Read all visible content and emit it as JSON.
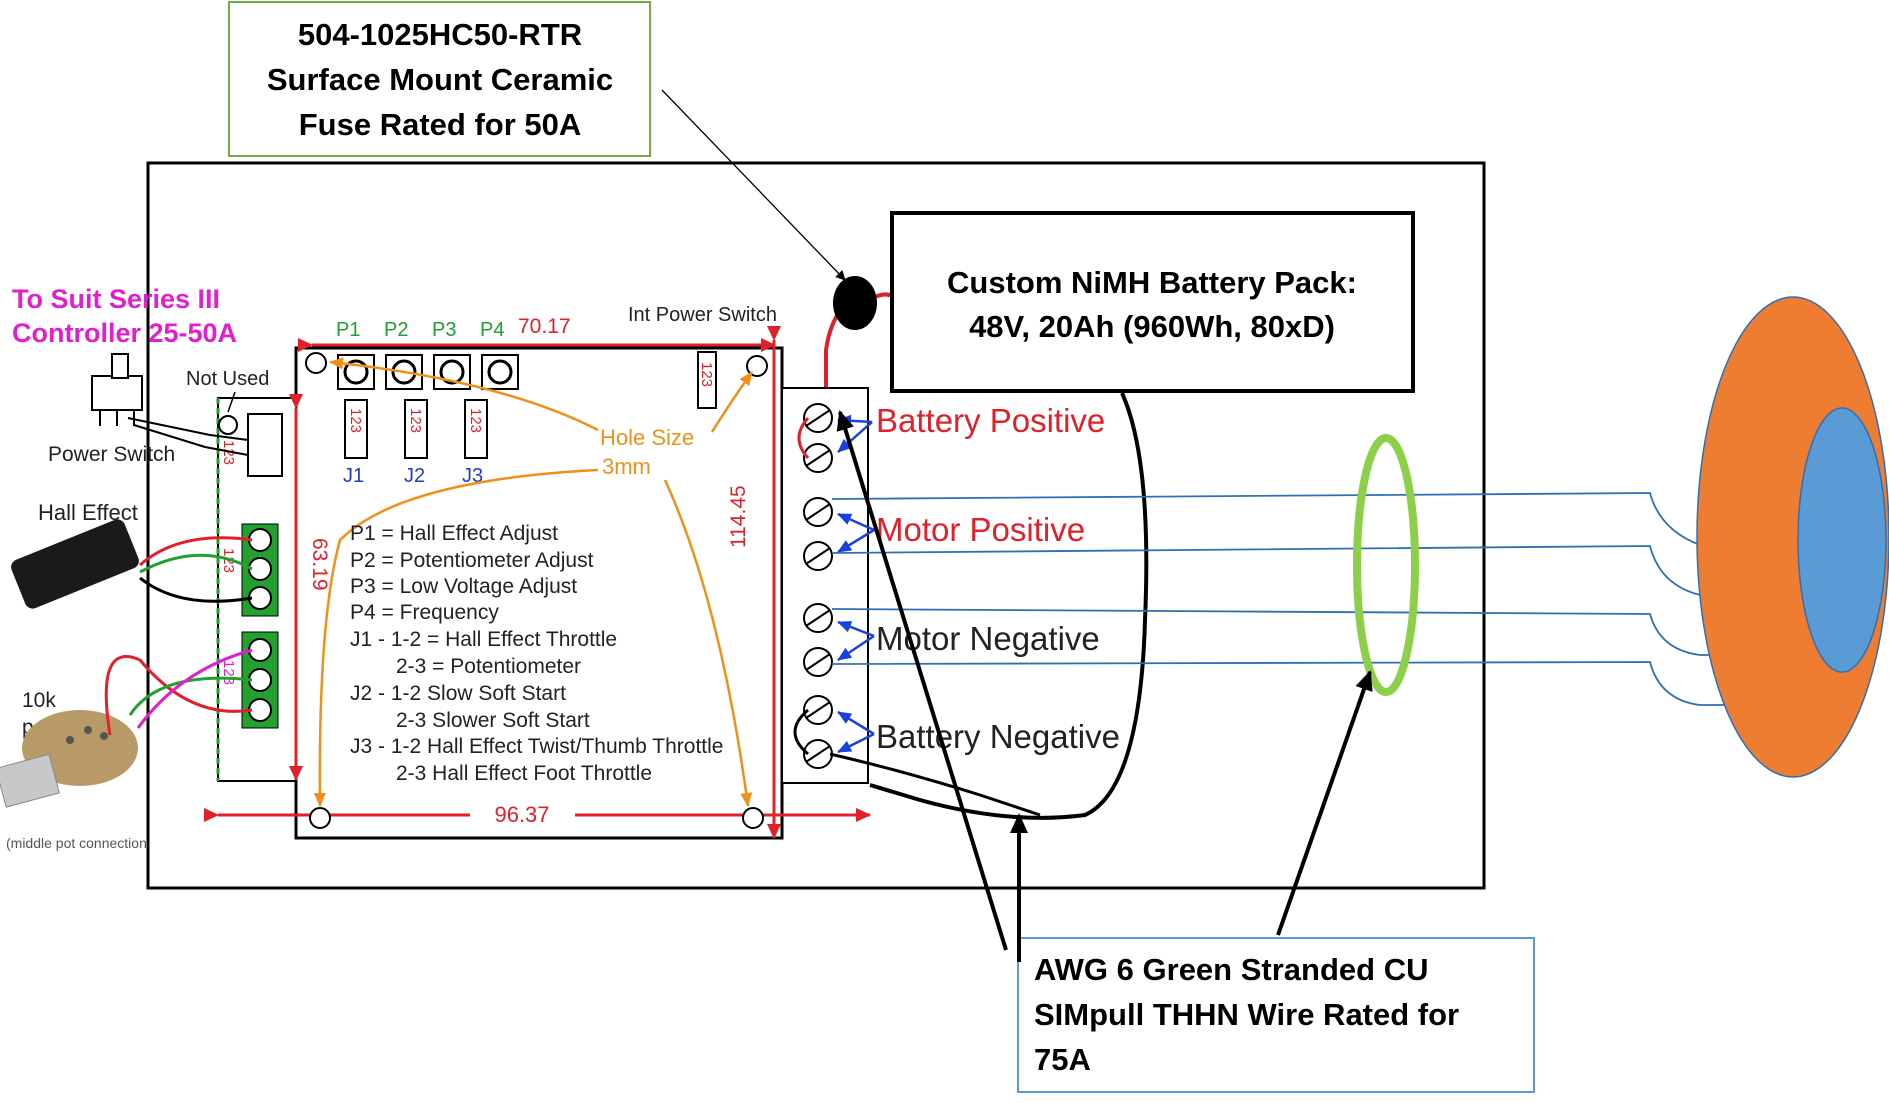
{
  "fuse_callout": {
    "lines": [
      "504-1025HC50-RTR",
      "Surface Mount Ceramic",
      "Fuse Rated for 50A"
    ]
  },
  "battery_callout": {
    "lines": [
      "Custom NiMH Battery Pack:",
      "48V, 20Ah (960Wh, 80xD)"
    ]
  },
  "wire_callout": {
    "lines": [
      "AWG 6 Green Stranded CU",
      "SIMpull THHN Wire Rated for",
      "75A"
    ]
  },
  "controller": {
    "title_lines": [
      "To Suit Series III",
      "Controller 25-50A"
    ],
    "pot_headers": [
      "P1",
      "P2",
      "P3",
      "P4"
    ],
    "top_dimension": "70.17",
    "bottom_dimension": "96.37",
    "left_dimension": "63.19",
    "right_dimension": "114.45",
    "int_power_switch": "Int Power Switch",
    "not_used": "Not Used",
    "power_switch": "Power Switch",
    "hall_effect": "Hall Effect",
    "pot_label_lines": [
      "10k",
      "pot"
    ],
    "hole_size_lines": [
      "Hole Size",
      "3mm"
    ],
    "jumpers": [
      "J1",
      "J2",
      "J3"
    ],
    "jumper_pins": "123",
    "connector_pins": "123",
    "bottom_note": "(middle pot connection",
    "legend": [
      "P1 = Hall Effect Adjust",
      "P2 = Potentiometer Adjust",
      "P3 = Low Voltage Adjust",
      "P4 = Frequency",
      "J1 - 1-2 = Hall Effect Throttle",
      "2-3 = Potentiometer",
      "J2 - 1-2 Slow Soft Start",
      "2-3 Slower Soft Start",
      "J3 - 1-2 Hall Effect Twist/Thumb Throttle",
      "2-3 Hall Effect Foot Throttle"
    ],
    "terminals": [
      "Battery Positive",
      "Motor Positive",
      "Motor Negative",
      "Battery Negative"
    ]
  },
  "colors": {
    "controller_title": "#e020d0",
    "dimension": "#e0202a",
    "terminal_label": "#e0202a",
    "terminal_label_dark": "#222222",
    "pot_header": "#22a030",
    "jumper_label": "#2040c0",
    "arrow_orange": "#f0901a",
    "arrow_blue": "#1a40e0",
    "wire_ring": "#8cd04a",
    "motor_outer": "#ee7d31",
    "motor_inner": "#5a9bd5",
    "motor_wire": "#2f6fb5",
    "fuse_border": "#70ad47",
    "wire_callout_border": "#5b9bd5"
  }
}
